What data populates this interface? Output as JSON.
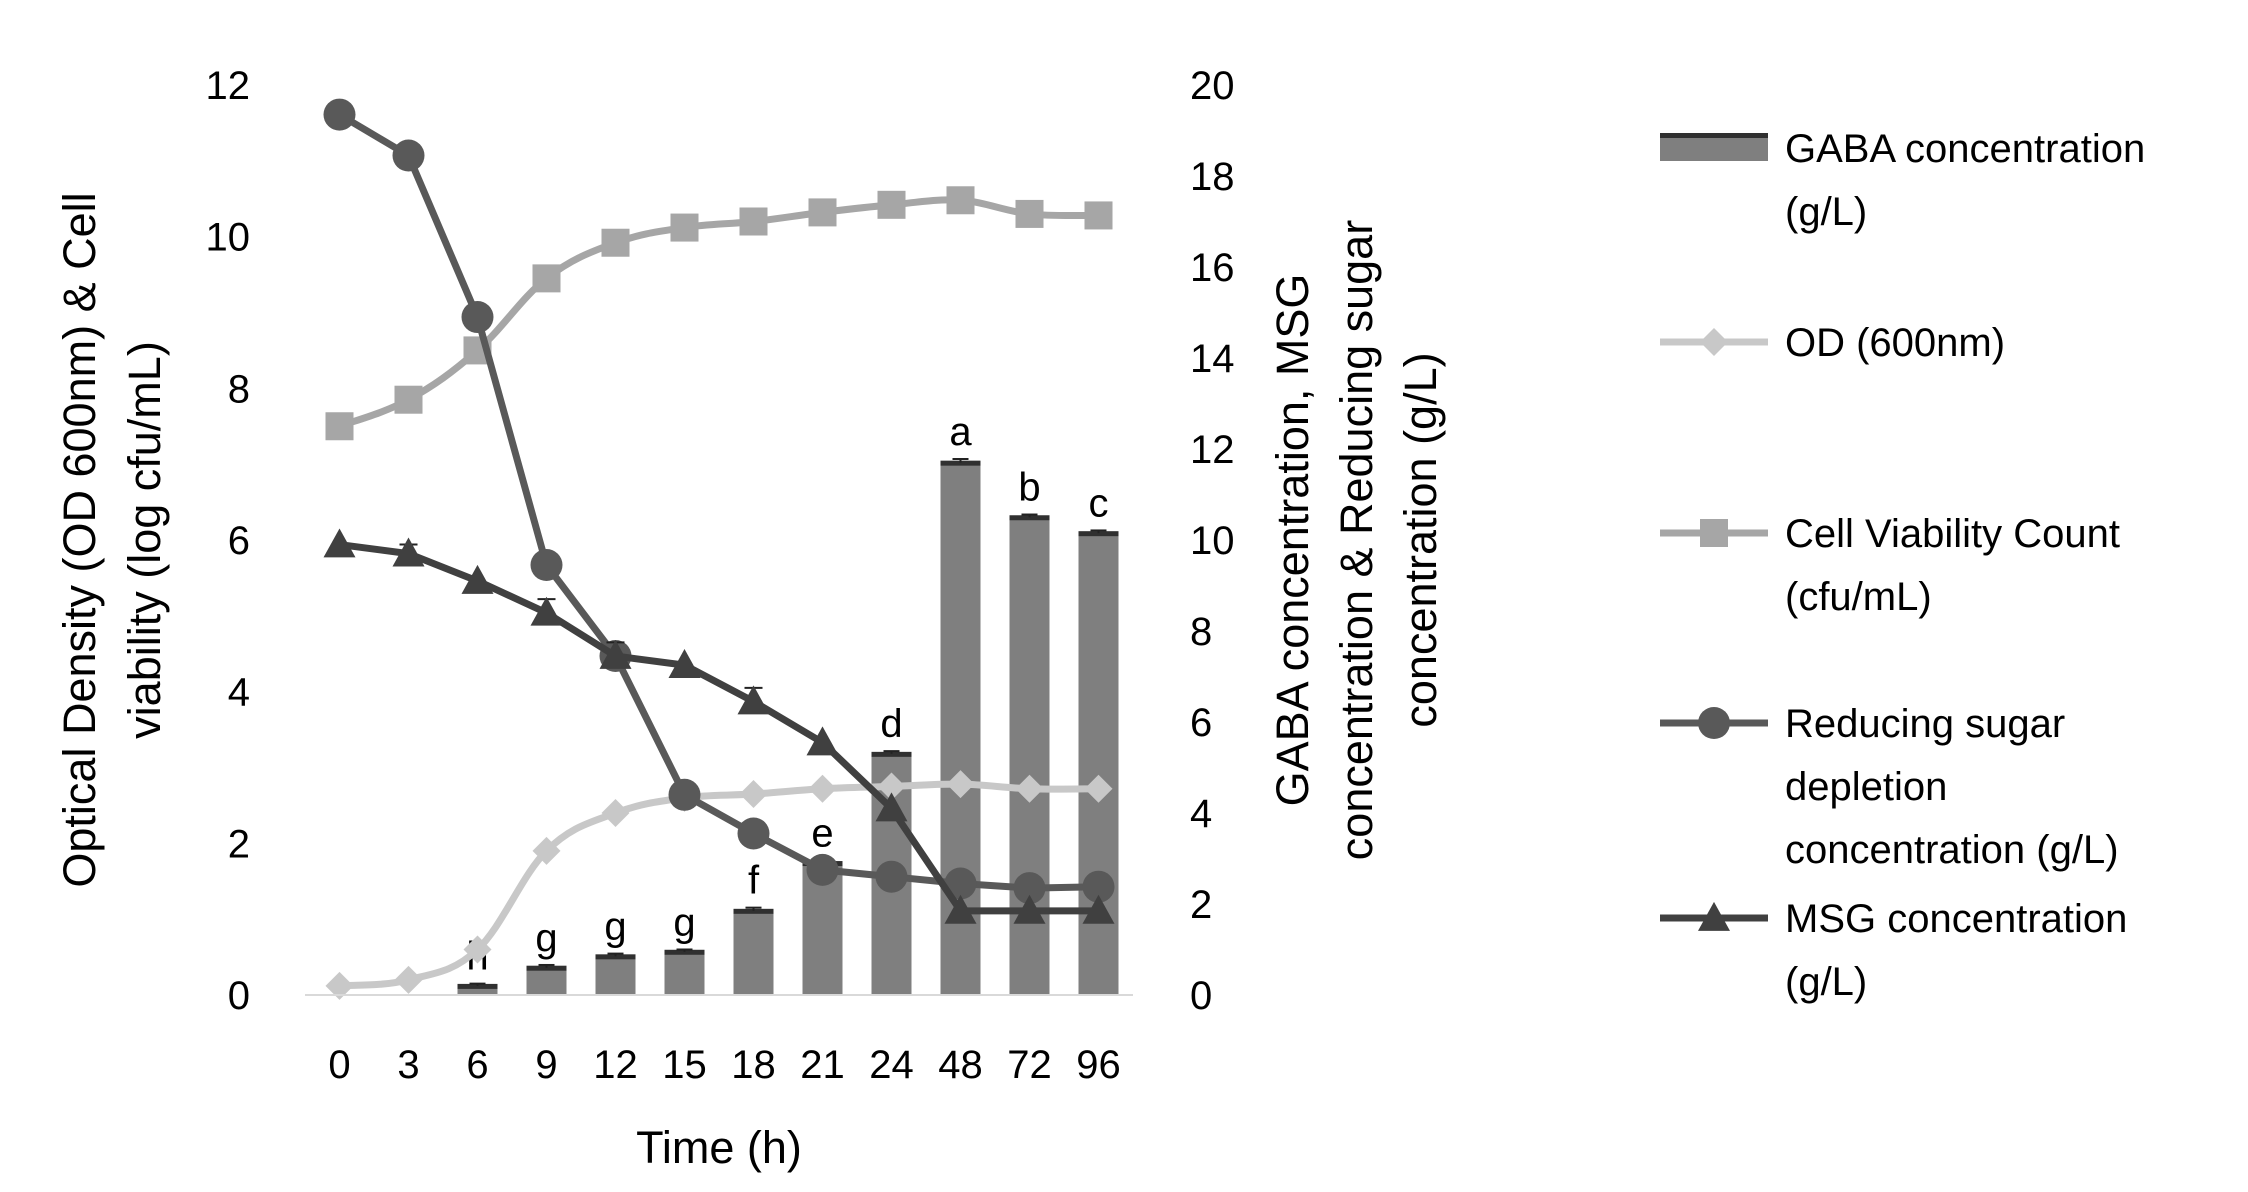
{
  "chart_data": {
    "type": "bar",
    "categories": [
      "0",
      "3",
      "6",
      "9",
      "12",
      "15",
      "18",
      "21",
      "24",
      "48",
      "72",
      "96"
    ],
    "xlabel": "Time (h)",
    "ylabel_left": [
      "Optical Density (OD 600nm) & Cell",
      "viability (log cfu/mL)"
    ],
    "ylabel_right": [
      "GABA concentration, MSG",
      "concentration & Reducing sugar",
      "concentration (g/L)"
    ],
    "ylim_left": [
      0,
      12
    ],
    "ylim_right": [
      0,
      20
    ],
    "yticks_left": [
      "0",
      "2",
      "4",
      "6",
      "8",
      "10",
      "12"
    ],
    "yticks_right": [
      "0",
      "2",
      "4",
      "6",
      "8",
      "10",
      "12",
      "14",
      "16",
      "18",
      "20"
    ],
    "grid": false,
    "legend_position": "right",
    "series": [
      {
        "key": "gaba",
        "name_lines": [
          "GABA concentration",
          "(g/L)"
        ],
        "type": "bar",
        "axis": "right",
        "color": "#7f7f7f",
        "values": [
          0,
          0,
          0.2,
          0.6,
          0.85,
          0.95,
          1.85,
          2.9,
          5.3,
          11.7,
          10.5,
          10.15
        ],
        "errors": [
          0,
          0,
          0.05,
          0.06,
          0.06,
          0.05,
          0.07,
          0.06,
          0.06,
          0.08,
          0.06,
          0.06
        ],
        "labels": [
          "",
          "",
          "h",
          "g",
          "g",
          "g",
          "f",
          "e",
          "d",
          "a",
          "b",
          "c"
        ]
      },
      {
        "key": "od",
        "name_lines": [
          "OD (600nm)"
        ],
        "type": "line",
        "marker": "diamond",
        "axis": "left",
        "color": "#c8c8c8",
        "values": [
          0.12,
          0.2,
          0.6,
          1.9,
          2.4,
          2.6,
          2.65,
          2.72,
          2.75,
          2.78,
          2.72,
          2.72
        ]
      },
      {
        "key": "cell",
        "name_lines": [
          "Cell Viability Count",
          "(cfu/mL)"
        ],
        "type": "line",
        "marker": "square",
        "axis": "left",
        "color": "#a6a6a6",
        "values": [
          7.5,
          7.85,
          8.5,
          9.45,
          9.92,
          10.12,
          10.2,
          10.32,
          10.42,
          10.48,
          10.3,
          10.28
        ]
      },
      {
        "key": "sugar",
        "name_lines": [
          "Reducing sugar",
          "depletion",
          "concentration (g/L)"
        ],
        "type": "line",
        "marker": "circle",
        "axis": "right",
        "color": "#595959",
        "values": [
          19.35,
          18.45,
          14.9,
          9.45,
          7.45,
          4.4,
          3.55,
          2.75,
          2.6,
          2.45,
          2.35,
          2.38
        ]
      },
      {
        "key": "msg",
        "name_lines": [
          "MSG concentration",
          "(g/L)"
        ],
        "type": "line",
        "marker": "triangle",
        "axis": "right",
        "color": "#404040",
        "values": [
          9.9,
          9.7,
          9.1,
          8.4,
          7.45,
          7.25,
          6.45,
          5.55,
          4.1,
          1.85,
          1.85,
          1.85
        ],
        "errors": [
          0,
          0.2,
          0,
          0.3,
          0.3,
          0,
          0.3,
          0,
          0,
          0,
          0,
          0
        ]
      }
    ]
  }
}
